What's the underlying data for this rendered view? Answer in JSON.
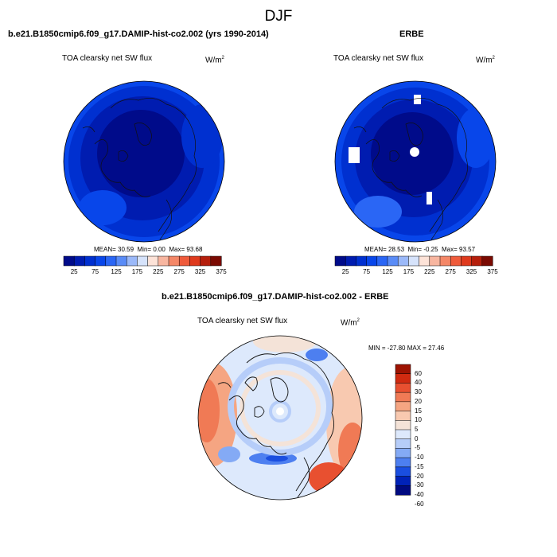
{
  "page_title": "DJF",
  "colors": {
    "abs_palette": [
      "#000b8a",
      "#001cb0",
      "#0030d0",
      "#0846ea",
      "#2a66f5",
      "#5a8cf7",
      "#9bb9f9",
      "#d6e3fb",
      "#fde3d8",
      "#f8b6a0",
      "#f48767",
      "#ef5b3b",
      "#df3a1d",
      "#b51f0c",
      "#7a0a02"
    ],
    "diff_palette": [
      "#000a80",
      "#0022b8",
      "#1a4ee0",
      "#4d7ff0",
      "#84aaf5",
      "#b6cdf9",
      "#dde9fc",
      "#f4e3d8",
      "#f8c9b0",
      "#f5a582",
      "#f07a55",
      "#e85030",
      "#d02a10",
      "#9e1302"
    ],
    "land_outline": "#111111"
  },
  "chart_data": [
    {
      "type": "heatmap",
      "projection": "north-polar-stereographic",
      "title": "b.e21.B1850cmip6.f09_g17.DAMIP-hist-co2.002 (yrs 1990-2014)",
      "subtitle": "TOA clearsky net SW flux",
      "units_base": "W/m",
      "units_exp": "2",
      "mean_label": "MEAN=",
      "mean": "30.59",
      "min_label": "Min=",
      "min": "0.00",
      "max_label": "Max=",
      "max": "93.68",
      "levels": [
        25,
        50,
        75,
        100,
        125,
        150,
        175,
        200,
        225,
        250,
        275,
        300,
        325,
        350,
        375
      ],
      "tick_labels": [
        "25",
        "75",
        "125",
        "175",
        "225",
        "275",
        "325",
        "375"
      ],
      "tick_values": [
        25,
        75,
        125,
        175,
        225,
        275,
        325,
        375
      ]
    },
    {
      "type": "heatmap",
      "projection": "north-polar-stereographic",
      "title": "ERBE",
      "subtitle": "TOA clearsky net SW flux",
      "units_base": "W/m",
      "units_exp": "2",
      "mean_label": "MEAN=",
      "mean": "28.53",
      "min_label": "Min=",
      "min": "-0.25",
      "max_label": "Max=",
      "max": "93.57",
      "levels": [
        25,
        50,
        75,
        100,
        125,
        150,
        175,
        200,
        225,
        250,
        275,
        300,
        325,
        350,
        375
      ],
      "tick_labels": [
        "25",
        "75",
        "125",
        "175",
        "225",
        "275",
        "325",
        "375"
      ],
      "tick_values": [
        25,
        75,
        125,
        175,
        225,
        275,
        325,
        375
      ]
    },
    {
      "type": "heatmap",
      "projection": "north-polar-stereographic",
      "title": "b.e21.B1850cmip6.f09_g17.DAMIP-hist-co2.002 - ERBE",
      "subtitle": "TOA clearsky net SW flux",
      "units_base": "W/m",
      "units_exp": "2",
      "minmax_text": "MIN = -27.80 MAX =  27.46",
      "levels": [
        -60,
        -40,
        -30,
        -20,
        -15,
        -10,
        -5,
        0,
        5,
        10,
        15,
        20,
        30,
        40,
        60
      ],
      "tick_labels": [
        "60",
        "40",
        "30",
        "20",
        "15",
        "10",
        "5",
        "0",
        "-5",
        "-10",
        "-15",
        "-20",
        "-30",
        "-40",
        "-60"
      ]
    }
  ]
}
